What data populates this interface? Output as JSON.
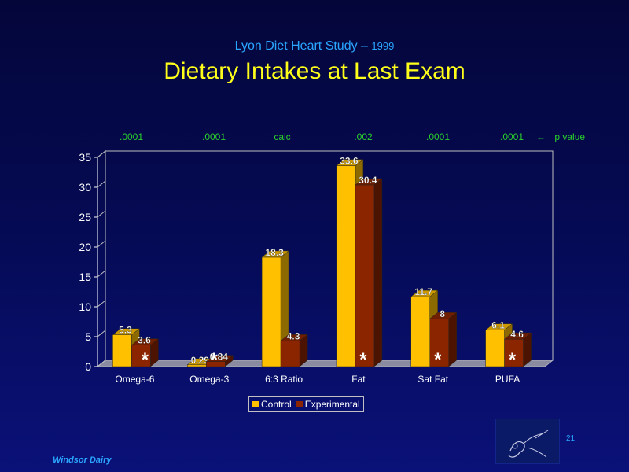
{
  "header": {
    "subtitle": "Lyon Diet Heart Study –",
    "subtitle_year": "1999",
    "title": "Dietary Intakes at Last Exam"
  },
  "p_values": {
    "values": [
      ".0001",
      ".0001",
      "calc",
      ".002",
      ".0001",
      ".0001"
    ],
    "legend_arrow": "←",
    "legend_label": "p value"
  },
  "chart_data": {
    "type": "bar",
    "categories": [
      "Omega-6",
      "Omega-3",
      "6:3 Ratio",
      "Fat",
      "Sat Fat",
      "PUFA"
    ],
    "series": [
      {
        "name": "Control",
        "values": [
          5.3,
          0.29,
          18.3,
          33.6,
          11.7,
          6.1
        ],
        "labels": [
          "5.3",
          "0.29",
          "18.3",
          "33.6",
          "11.7",
          "6.1"
        ],
        "color": "#ffc000"
      },
      {
        "name": "Experimental",
        "values": [
          3.6,
          0.84,
          4.3,
          30.4,
          8,
          4.6
        ],
        "labels": [
          "3.6",
          "0.84",
          "4.3",
          "30.4",
          "8",
          "4.6"
        ],
        "color": "#8b2500"
      }
    ],
    "significance_marker": "*",
    "significant": [
      true,
      true,
      false,
      true,
      true,
      true
    ],
    "ylim": [
      0,
      35
    ],
    "yticks": [
      0,
      5,
      10,
      15,
      20,
      25,
      30,
      35
    ],
    "grid": false,
    "legend_position": "bottom"
  },
  "footer": {
    "brand": "Windsor Dairy",
    "slide_number": "21"
  },
  "colors": {
    "subtitle": "#2aa6ff",
    "title": "#ffff1a",
    "p_value": "#2bd12b"
  }
}
